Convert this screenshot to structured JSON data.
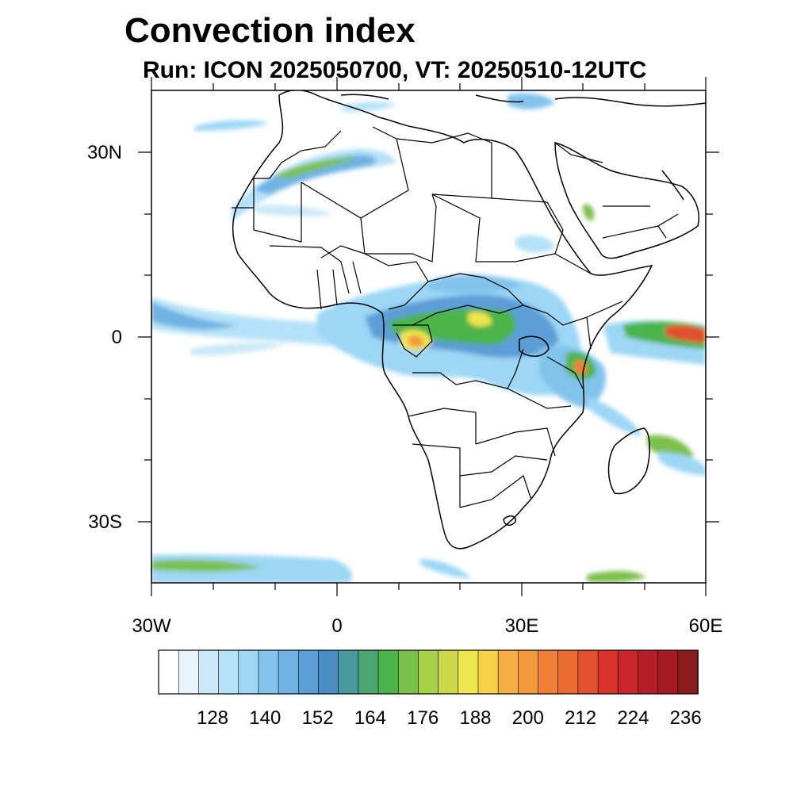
{
  "title": "Convection index",
  "subtitle": "Run: ICON 2025050700,  VT: 20250510-12UTC",
  "map": {
    "type": "heatmap",
    "projection": "cylindrical-equidistant",
    "lon_range": [
      -30,
      60
    ],
    "lat_range": [
      -40,
      40
    ],
    "x_tick_labels": [
      "30W",
      "0",
      "30E",
      "60E"
    ],
    "y_tick_labels": [
      "30N",
      "0",
      "30S"
    ]
  },
  "colorbar": {
    "labels": [
      "128",
      "140",
      "152",
      "164",
      "176",
      "188",
      "200",
      "212",
      "224",
      "236"
    ],
    "colors": [
      "#ffffff",
      "#e8f4fb",
      "#cbe9f8",
      "#b5e2f8",
      "#9dd7f5",
      "#82c3ec",
      "#6fb2e4",
      "#5b9ed6",
      "#4a8ec4",
      "#489a9c",
      "#4aa56e",
      "#4cb44c",
      "#7cc04c",
      "#a7cf48",
      "#cbd94a",
      "#eee64e",
      "#f8d04a",
      "#f6ae42",
      "#f39a3c",
      "#ef7f35",
      "#eb6a2f",
      "#e2502d",
      "#d9342b",
      "#c8262b",
      "#b71d28",
      "#a31a22",
      "#8b1a1a"
    ]
  }
}
